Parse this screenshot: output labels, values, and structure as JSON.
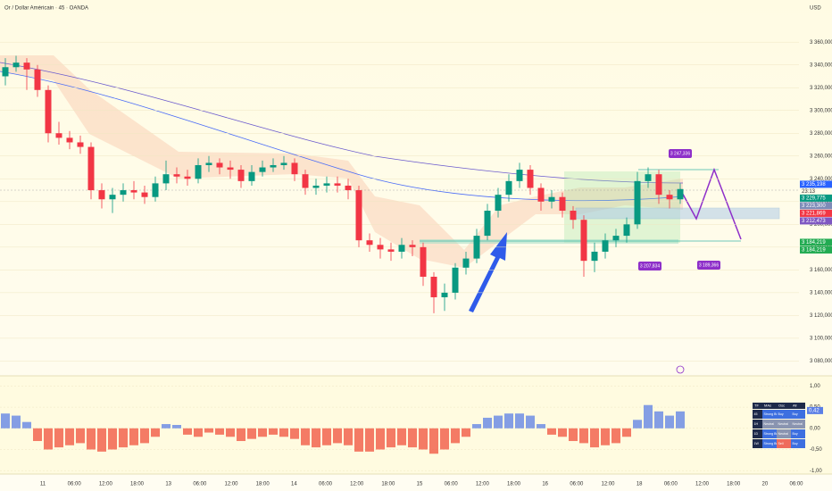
{
  "chart_data": [
    {
      "type": "candlestick",
      "title": "Or / Dollar Américain · 45 · OANDA",
      "unit": "USD",
      "up_color": "#089981",
      "down_color": "#f23645",
      "open": [
        3330,
        3338,
        3342,
        3336,
        3318,
        3280,
        3276,
        3272,
        3268,
        3230,
        3222,
        3226,
        3230,
        3228,
        3224,
        3236,
        3244,
        3242,
        3240,
        3252,
        3254,
        3250,
        3248,
        3238,
        3246,
        3250,
        3252,
        3254,
        3244,
        3232,
        3234,
        3236,
        3234,
        3230,
        3186,
        3182,
        3178,
        3176,
        3182,
        3180,
        3154,
        3136,
        3140,
        3162,
        3170,
        3190,
        3212,
        3226,
        3238,
        3248,
        3232,
        3220,
        3224,
        3212,
        3204,
        3168,
        3176,
        3186,
        3190,
        3200,
        3238,
        3244,
        3226,
        3222
      ],
      "high": [
        3346,
        3348,
        3346,
        3340,
        3322,
        3290,
        3282,
        3278,
        3272,
        3236,
        3232,
        3236,
        3238,
        3234,
        3242,
        3256,
        3250,
        3248,
        3258,
        3260,
        3258,
        3256,
        3252,
        3252,
        3256,
        3258,
        3260,
        3258,
        3248,
        3240,
        3242,
        3242,
        3240,
        3234,
        3192,
        3188,
        3184,
        3188,
        3186,
        3184,
        3158,
        3148,
        3166,
        3176,
        3196,
        3218,
        3232,
        3244,
        3254,
        3252,
        3236,
        3230,
        3228,
        3216,
        3208,
        3184,
        3192,
        3196,
        3206,
        3246,
        3250,
        3248,
        3230,
        3236
      ],
      "low": [
        3322,
        3334,
        3318,
        3312,
        3272,
        3270,
        3266,
        3262,
        3222,
        3214,
        3210,
        3220,
        3222,
        3218,
        3220,
        3230,
        3236,
        3234,
        3236,
        3246,
        3244,
        3240,
        3232,
        3234,
        3242,
        3246,
        3248,
        3238,
        3226,
        3226,
        3228,
        3228,
        3222,
        3180,
        3176,
        3170,
        3168,
        3170,
        3172,
        3146,
        3122,
        3124,
        3134,
        3156,
        3166,
        3186,
        3206,
        3220,
        3232,
        3226,
        3212,
        3214,
        3206,
        3196,
        3154,
        3158,
        3170,
        3180,
        3184,
        3196,
        3232,
        3218,
        3214,
        3218
      ],
      "close": [
        3338,
        3342,
        3336,
        3318,
        3280,
        3276,
        3272,
        3268,
        3230,
        3222,
        3226,
        3230,
        3228,
        3224,
        3236,
        3244,
        3242,
        3240,
        3252,
        3254,
        3250,
        3248,
        3238,
        3246,
        3250,
        3252,
        3254,
        3244,
        3232,
        3234,
        3236,
        3234,
        3230,
        3186,
        3182,
        3178,
        3176,
        3182,
        3180,
        3154,
        3136,
        3140,
        3162,
        3170,
        3190,
        3212,
        3226,
        3238,
        3248,
        3232,
        3220,
        3224,
        3212,
        3204,
        3168,
        3176,
        3186,
        3190,
        3200,
        3238,
        3244,
        3226,
        3222,
        3231
      ],
      "ylim": [
        3067,
        3397
      ],
      "yticks": [
        {
          "value": 3080,
          "label": "3 080,000"
        },
        {
          "value": 3100,
          "label": "3 100,000"
        },
        {
          "value": 3120,
          "label": "3 120,000"
        },
        {
          "value": 3140,
          "label": "3 140,000"
        },
        {
          "value": 3160,
          "label": "3 160,000"
        },
        {
          "value": 3180,
          "label": "3 180,000"
        },
        {
          "value": 3200,
          "label": "3 200,000"
        },
        {
          "value": 3220,
          "label": "3 220,000"
        },
        {
          "value": 3240,
          "label": "3 240,000"
        },
        {
          "value": 3260,
          "label": "3 260,000"
        },
        {
          "value": 3280,
          "label": "3 280,000"
        },
        {
          "value": 3300,
          "label": "3 300,000"
        },
        {
          "value": 3320,
          "label": "3 320,000"
        },
        {
          "value": 3340,
          "label": "3 340,000"
        },
        {
          "value": 3360,
          "label": "3 360,000"
        }
      ],
      "grid": true,
      "time_labels": [
        "11",
        "06:00",
        "12:00",
        "18:00",
        "13",
        "06:00",
        "12:00",
        "18:00",
        "14",
        "06:00",
        "12:00",
        "18:00",
        "15",
        "06:00",
        "12:00",
        "18:00",
        "16",
        "06:00",
        "12:00",
        "18",
        "06:00",
        "12:00",
        "18:00",
        "20",
        "06:00"
      ],
      "price_tags": [
        {
          "value": 3235.198,
          "label": "3 235,198",
          "color": "#2962ff"
        },
        {
          "value": 3229.775,
          "label": "3 229,775",
          "color": "#089981"
        },
        {
          "value": 3223.3,
          "label": "3 223,300",
          "color": "#7e8bb8"
        },
        {
          "value": 3221.869,
          "label": "3 221,869",
          "color": "#f23645"
        },
        {
          "value": 3212.473,
          "label": "3 212,473",
          "color": "#7e57c2"
        },
        {
          "value": 3184.219,
          "label": "3 184,219",
          "color": "#22ab52"
        },
        {
          "value": 3184.219,
          "label": "3 184,219",
          "color": "#22ab52"
        }
      ],
      "countdown": "23:13",
      "annotations": [
        {
          "value": 3247.336,
          "label": "3 247,336"
        },
        {
          "value": 3207.834,
          "label": "3 207,834"
        },
        {
          "value": 3189.366,
          "label": "3 189,366"
        }
      ]
    },
    {
      "type": "bar",
      "pos_color": "#5b7fe6",
      "neg_color": "#f0503c",
      "values": [
        0.35,
        0.3,
        0.15,
        -0.3,
        -0.5,
        -0.45,
        -0.4,
        -0.35,
        -0.5,
        -0.55,
        -0.5,
        -0.45,
        -0.4,
        -0.35,
        -0.2,
        0.1,
        0.08,
        -0.15,
        -0.2,
        -0.1,
        -0.15,
        -0.2,
        -0.3,
        -0.25,
        -0.2,
        -0.15,
        -0.2,
        -0.25,
        -0.4,
        -0.45,
        -0.4,
        -0.35,
        -0.4,
        -0.55,
        -0.55,
        -0.5,
        -0.45,
        -0.4,
        -0.45,
        -0.5,
        -0.6,
        -0.5,
        -0.35,
        -0.2,
        0.1,
        0.25,
        0.3,
        0.35,
        0.35,
        0.3,
        0.1,
        -0.15,
        -0.2,
        -0.3,
        -0.35,
        -0.45,
        -0.4,
        -0.35,
        -0.2,
        0.2,
        0.55,
        0.4,
        0.3,
        0.4
      ],
      "ylim": [
        -1.08,
        1.24
      ],
      "yticks": [
        {
          "value": 1,
          "label": "1,00"
        },
        {
          "value": 0.5,
          "label": "0,50"
        },
        {
          "value": 0,
          "label": "0,00"
        },
        {
          "value": -0.5,
          "label": "-0,50"
        },
        {
          "value": -1,
          "label": "-1,00"
        }
      ],
      "value_tag": {
        "value": 0.42,
        "label": "0,42"
      }
    }
  ],
  "table": {
    "header": [
      "TF",
      "MAs",
      "Osc",
      "All"
    ],
    "rows": [
      [
        "45",
        "Strong Buy",
        "Buy",
        "Buy"
      ],
      [
        "1H",
        "Neutral",
        "Neutral",
        "Neutral"
      ],
      [
        "1D",
        "Strong Buy",
        "Neutral",
        "Buy"
      ],
      [
        "1W",
        "Strong Buy",
        "Sell",
        "Buy"
      ]
    ]
  }
}
